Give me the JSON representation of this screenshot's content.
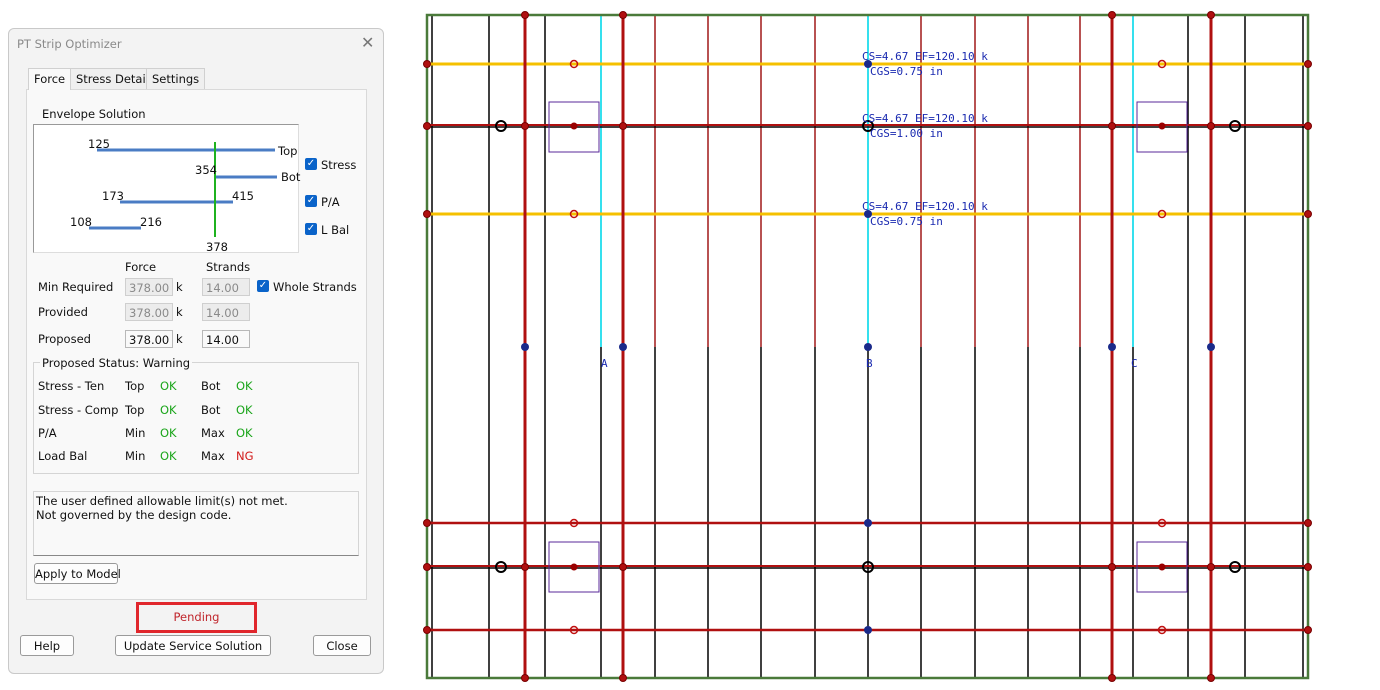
{
  "dialog": {
    "title": "PT Strip Optimizer",
    "tabs": [
      "Force",
      "Stress Details",
      "Settings"
    ],
    "envelope": {
      "title": "Envelope Solution",
      "numbers": [
        "125",
        "354",
        "173",
        "415",
        "108",
        "216",
        "378"
      ],
      "top": "Top",
      "bot": "Bot"
    },
    "checkboxes": [
      "Stress",
      "P/A",
      "L Bal"
    ],
    "force_table": {
      "headers": [
        "Force",
        "Strands"
      ],
      "rows": [
        {
          "label": "Min Required",
          "force": "378.00",
          "unit": "k",
          "strands": "14.00"
        },
        {
          "label": "Provided",
          "force": "378.00",
          "unit": "k",
          "strands": "14.00"
        },
        {
          "label": "Proposed",
          "force": "378.00",
          "unit": "k",
          "strands": "14.00"
        }
      ],
      "whole_strands": "Whole Strands"
    },
    "status": {
      "title": "Proposed Status: Warning",
      "rows": [
        [
          "Stress - Ten",
          "Top",
          "OK",
          "Bot",
          "OK"
        ],
        [
          "Stress - Comp",
          "Top",
          "OK",
          "Bot",
          "OK"
        ],
        [
          "P/A",
          "Min",
          "OK",
          "Max",
          "OK"
        ],
        [
          "Load Bal",
          "Min",
          "OK",
          "Max",
          "NG"
        ]
      ]
    },
    "message": [
      "The user defined allowable limit(s) not met.",
      "Not governed by the design code."
    ],
    "buttons": {
      "apply": "Apply to Model",
      "pending": "Pending",
      "help": "Help",
      "update": "Update Service Solution",
      "close": "Close"
    }
  },
  "drawing": {
    "tendons": [
      {
        "force": "CS=4.67   EF=120.10  k",
        "cgs": "CGS=0.75  in"
      },
      {
        "force": "CS=4.67   EF=120.10  k",
        "cgs": "CGS=1.00  in"
      },
      {
        "force": "CS=4.67   EF=120.10  k",
        "cgs": "CGS=0.75  in"
      }
    ],
    "grid_labels": [
      "A",
      "B",
      "C"
    ]
  }
}
